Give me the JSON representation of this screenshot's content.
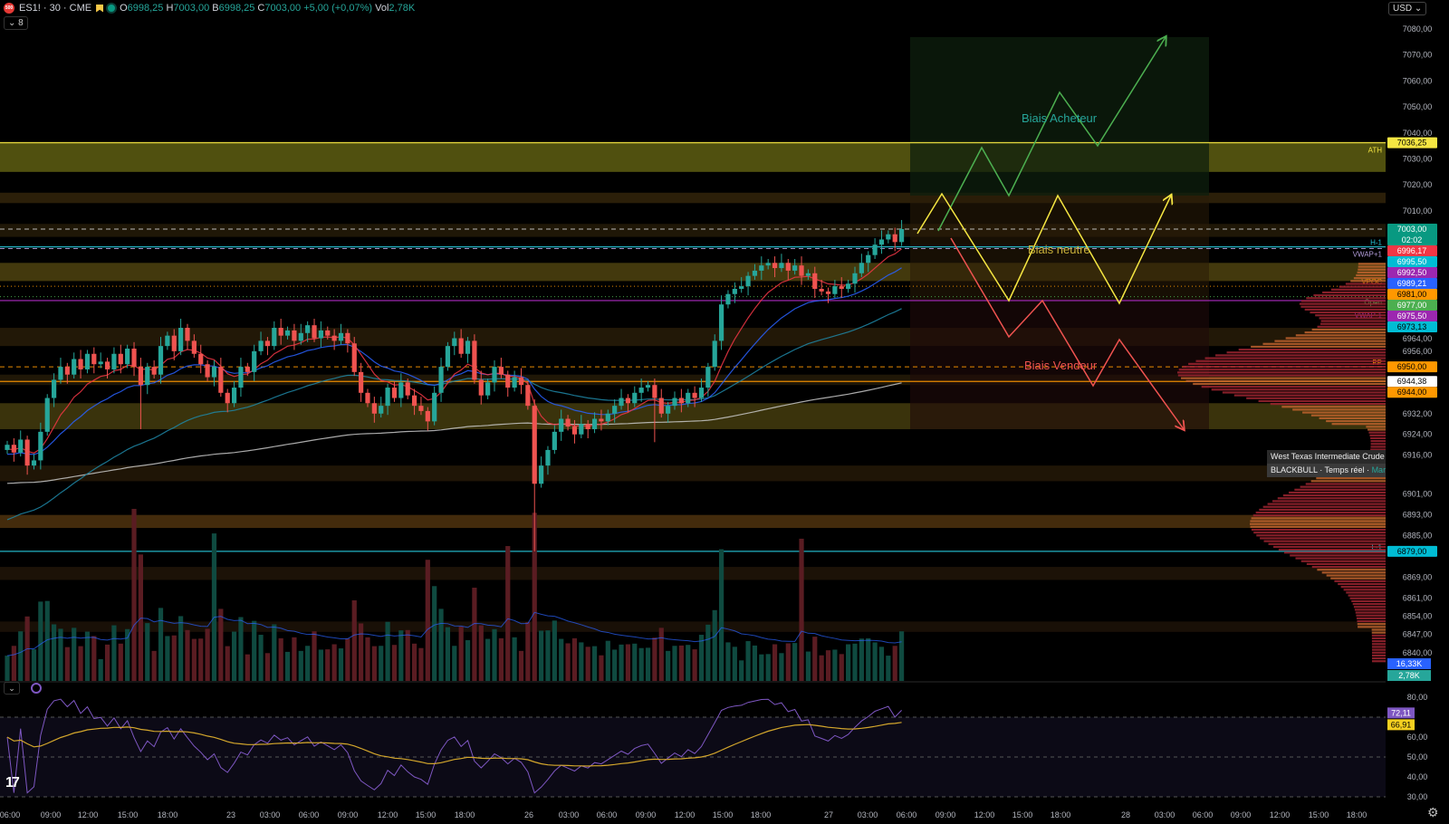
{
  "header": {
    "logo_text": "500",
    "symbol": "ES1! · 30 · CME",
    "open_label": "O",
    "open": "6998,25",
    "high_label": "H",
    "high": "7003,00",
    "low_label": "B",
    "low": "6998,25",
    "close_label": "C",
    "close": "7003,00",
    "change": "+5,00 (+0,07%)",
    "vol_label": "Vol",
    "vol": "2,78K",
    "collapse_label": "⌄ 8"
  },
  "currency_button": "USD ⌄",
  "tooltip": {
    "title": "West Texas Intermediate Crude Oil cash",
    "broker": "BLACKBULL",
    "sep": " · ",
    "realtime": "Temps réel",
    "status": "Marché ouvert"
  },
  "annotations": {
    "buyer": "Biais Acheteur",
    "neutral": "Biais neutre",
    "seller": "Biais Vendeur"
  },
  "colors": {
    "up": "#26a69a",
    "down": "#ef5350",
    "ema9": "#f23645",
    "ema20": "#2962ff",
    "ema50": "#1e88a8",
    "ema200": "#c8c8c8",
    "rsi": "#7e57c2",
    "rsi_ma": "#d4a72c"
  },
  "chart_data": {
    "type": "candlestick",
    "symbol": "ES1!",
    "interval": "30",
    "price_range": [
      6840,
      7080
    ],
    "first_open": 6918,
    "closes": [
      6920,
      6917,
      6922,
      6912,
      6914,
      6925,
      6938,
      6945,
      6950,
      6947,
      6953,
      6949,
      6955,
      6951,
      6952,
      6949,
      6955,
      6951,
      6957,
      6950,
      6943,
      6950,
      6947,
      6958,
      6962,
      6956,
      6965,
      6960,
      6955,
      6951,
      6946,
      6950,
      6940,
      6936,
      6942,
      6950,
      6948,
      6956,
      6960,
      6958,
      6965,
      6962,
      6964,
      6960,
      6963,
      6966,
      6961,
      6964,
      6962,
      6960,
      6963,
      6959,
      6948,
      6940,
      6936,
      6932,
      6935,
      6942,
      6938,
      6944,
      6939,
      6935,
      6933,
      6929,
      6940,
      6950,
      6958,
      6961,
      6955,
      6960,
      6945,
      6939,
      6944,
      6950,
      6947,
      6942,
      6946,
      6943,
      6935,
      6905,
      6912,
      6918,
      6925,
      6930,
      6927,
      6924,
      6928,
      6926,
      6930,
      6929,
      6932,
      6935,
      6938,
      6936,
      6940,
      6942,
      6943,
      6938,
      6932,
      6935,
      6938,
      6936,
      6940,
      6938,
      6942,
      6950,
      6960,
      6974,
      6978,
      6980,
      6981,
      6985,
      6987,
      6989,
      6990,
      6988,
      6990,
      6987,
      6989,
      6985,
      6986,
      6980,
      6979,
      6978,
      6981,
      6980,
      6982,
      6986,
      6990,
      6993,
      6997,
      6999,
      7001,
      6998,
      7003
    ],
    "wick_overrides": {
      "79": 6879,
      "97": 6921,
      "20": 6926
    },
    "volume_spikes": {
      "19": 16330,
      "20": 12000,
      "31": 14000,
      "63": 11500,
      "64": 9000,
      "75": 12800,
      "107": 12500,
      "119": 13500
    },
    "ema_seeds": {
      "ema9": 6918,
      "ema20": 6916,
      "ema50": 6890,
      "ema200": 6905
    },
    "zones": [
      {
        "from": 7025,
        "to": 7036.25,
        "color": "#6b6b14"
      },
      {
        "from": 7013,
        "to": 7017,
        "color": "#3a2a0c"
      },
      {
        "from": 7000,
        "to": 7005,
        "color": "#2a1f0a"
      },
      {
        "from": 6983,
        "to": 6990,
        "color": "#5a4c12"
      },
      {
        "from": 6958,
        "to": 6965,
        "color": "#2e200a"
      },
      {
        "from": 6943,
        "to": 6947,
        "color": "#2a1f0a"
      },
      {
        "from": 6926,
        "to": 6936,
        "color": "#4e4410"
      },
      {
        "from": 6906,
        "to": 6912,
        "color": "#2a1c08"
      },
      {
        "from": 6888,
        "to": 6893,
        "color": "#5a3a10"
      },
      {
        "from": 6868,
        "to": 6873,
        "color": "#26180a"
      },
      {
        "from": 6848,
        "to": 6852,
        "color": "#22160a"
      }
    ],
    "levels": [
      {
        "price": 7036.25,
        "label": "ATH",
        "tag": "7036,25",
        "color": "#f5e642",
        "style": "solid",
        "tagText": "#000"
      },
      {
        "price": 7003.0,
        "label": "",
        "tag": "7003,00",
        "tag2": "02:02",
        "color": "#cccccc",
        "style": "dash",
        "tagBg": "#089981",
        "tagText": "#fff"
      },
      {
        "price": 6996.17,
        "label": "H-1",
        "tag": "6996,17",
        "color": "#26c6da",
        "style": "solid",
        "tagBg": "#f23645",
        "tagText": "#fff"
      },
      {
        "price": 6995.5,
        "label": "VWAP+1",
        "tag": "6995,50",
        "color": "#b39ddb",
        "style": "dash",
        "tagBg": "#00bcd4",
        "tagText": "#fff"
      },
      {
        "price": 6992.5,
        "label": "",
        "tag": "6992,50",
        "color": "#9c27b0",
        "style": "none",
        "tagBg": "#9c27b0",
        "tagText": "#fff"
      },
      {
        "price": 6989.21,
        "label": "",
        "tag": "6989,21",
        "color": "#2962ff",
        "style": "none",
        "tagBg": "#2962ff",
        "tagText": "#fff"
      },
      {
        "price": 6981.0,
        "label": "VPOC",
        "tag": "6981,00",
        "color": "#ff9800",
        "style": "dot",
        "tagBg": "#ff9800",
        "tagText": "#000"
      },
      {
        "price": 6977.0,
        "label": "Open",
        "tag": "6977,00",
        "color": "#4caf50",
        "style": "dot",
        "tagBg": "#4caf50",
        "tagText": "#fff"
      },
      {
        "price": 6975.5,
        "label": "VWAP-1",
        "tag": "6975,50",
        "color": "#9c27b0",
        "style": "solid",
        "tagBg": "#9c27b0",
        "tagText": "#fff"
      },
      {
        "price": 6973.13,
        "label": "",
        "tag": "6973,13",
        "color": "#00bcd4",
        "style": "none",
        "tagBg": "#00bcd4",
        "tagText": "#000"
      },
      {
        "price": 6950.0,
        "label": "PP",
        "tag": "6950,00",
        "color": "#ff9800",
        "style": "dash",
        "tagBg": "#ff9800",
        "tagText": "#000"
      },
      {
        "price": 6944.38,
        "label": "",
        "tag": "6944,38",
        "color": "#ff9800",
        "style": "solid",
        "tagBg": "#ffffff",
        "tagText": "#000"
      },
      {
        "price": 6944.0,
        "label": "",
        "tag": "6944,00",
        "color": "#ff9800",
        "style": "none",
        "tagBg": "#ff9800",
        "tagText": "#000"
      },
      {
        "price": 6879.0,
        "label": "L-1",
        "tag": "6879,00",
        "color": "#26c6da",
        "style": "solid",
        "tagBg": "#00bcd4",
        "tagText": "#000"
      }
    ],
    "price_ticks": [
      {
        "p": 7080,
        "t": "7080,00"
      },
      {
        "p": 7070,
        "t": "7070,00"
      },
      {
        "p": 7060,
        "t": "7060,00"
      },
      {
        "p": 7050,
        "t": "7050,00"
      },
      {
        "p": 7040,
        "t": "7040,00"
      },
      {
        "p": 7030,
        "t": "7030,00"
      },
      {
        "p": 7020,
        "t": "7020,00"
      },
      {
        "p": 7010,
        "t": "7010,00"
      },
      {
        "p": 6964,
        "t": "6964,00"
      },
      {
        "p": 6956,
        "t": "6956,00"
      },
      {
        "p": 6932,
        "t": "6932,00"
      },
      {
        "p": 6924,
        "t": "6924,00"
      },
      {
        "p": 6916,
        "t": "6916,00"
      },
      {
        "p": 6901,
        "t": "6901,00"
      },
      {
        "p": 6893,
        "t": "6893,00"
      },
      {
        "p": 6885,
        "t": "6885,00"
      },
      {
        "p": 6869,
        "t": "6869,00"
      },
      {
        "p": 6861,
        "t": "6861,00"
      },
      {
        "p": 6854,
        "t": "6854,00"
      },
      {
        "p": 6847,
        "t": "6847,00"
      },
      {
        "p": 6840,
        "t": "6840,00"
      }
    ],
    "volume_tags": [
      {
        "t": "16,33K",
        "bg": "#2962ff"
      },
      {
        "t": "2,78K",
        "bg": "#26a69a"
      }
    ],
    "rsi": {
      "range": [
        30,
        80
      ],
      "ticks": [
        "80,00",
        "60,00",
        "50,00",
        "40,00",
        "30,00"
      ],
      "tick_values": [
        80,
        60,
        50,
        40,
        30
      ],
      "value": "72,11",
      "ma_value": "66,91",
      "bands": [
        70,
        50,
        30
      ]
    },
    "time_labels": [
      "06:00",
      "09:00",
      "12:00",
      "15:00",
      "18:00",
      "23",
      "03:00",
      "06:00",
      "09:00",
      "12:00",
      "15:00",
      "18:00",
      "26",
      "03:00",
      "06:00",
      "09:00",
      "12:00",
      "15:00",
      "18:00",
      "27",
      "03:00",
      "06:00",
      "09:00",
      "12:00",
      "15:00",
      "18:00",
      "28",
      "03:00",
      "06:00",
      "09:00",
      "12:00",
      "15:00",
      "18:00"
    ]
  }
}
